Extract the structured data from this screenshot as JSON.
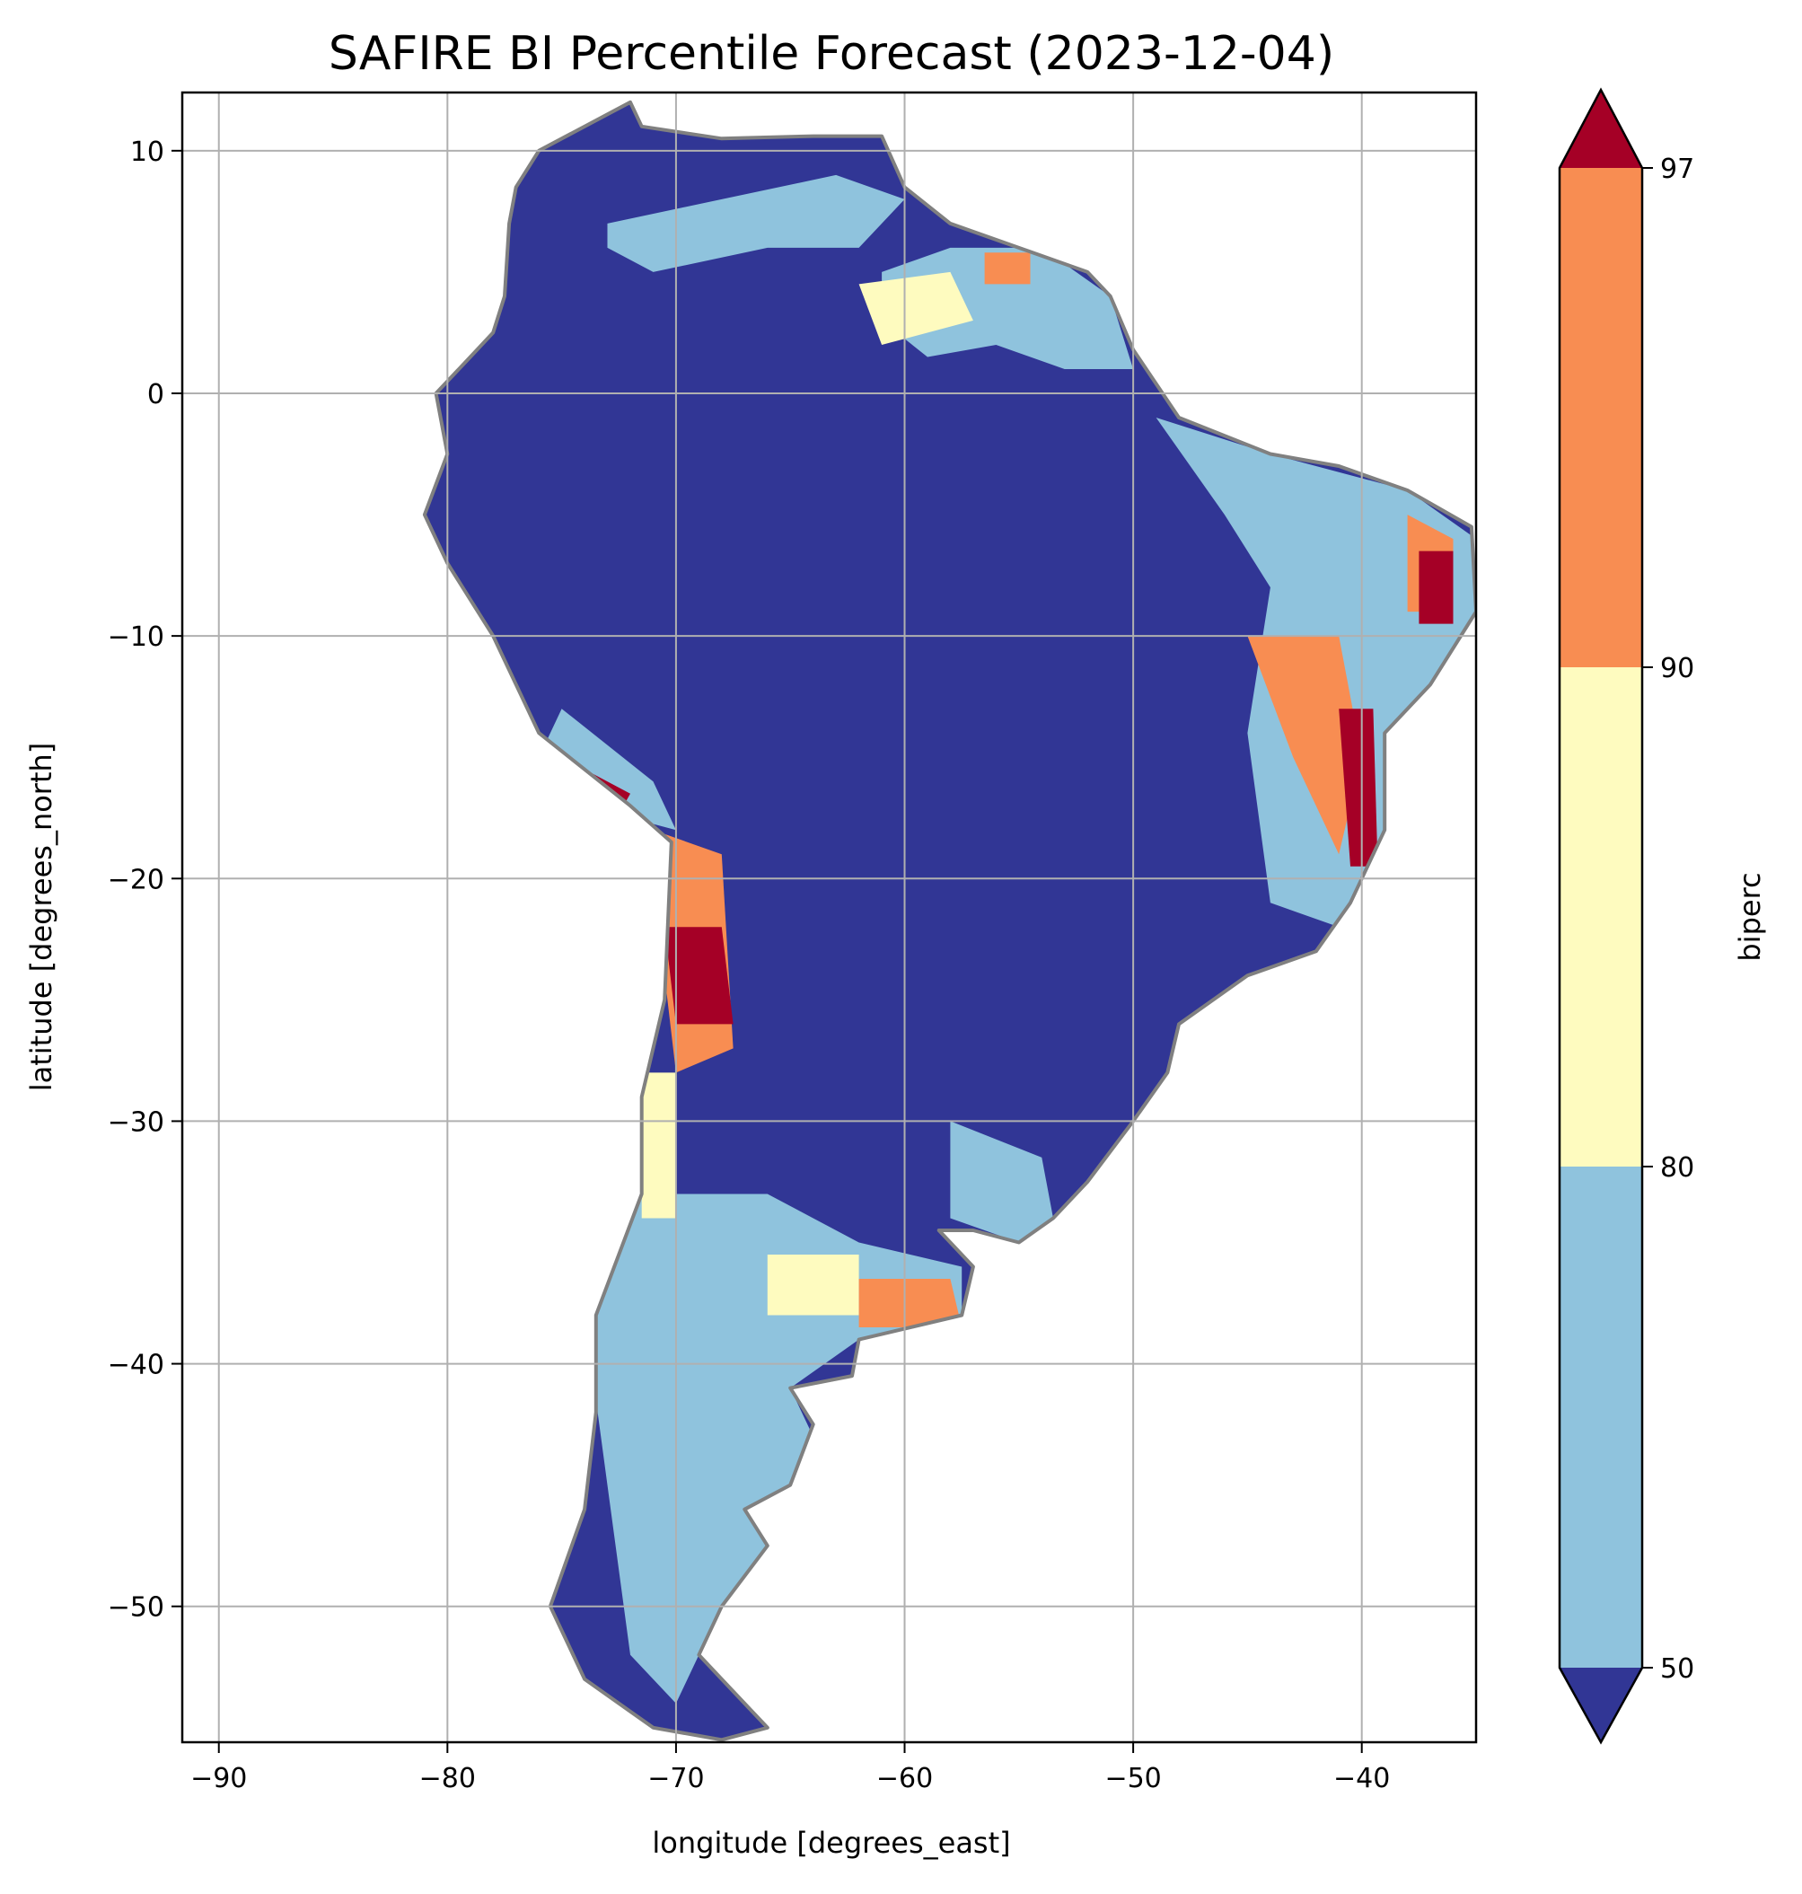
{
  "chart_data": {
    "type": "heatmap",
    "title": "SAFIRE BI Percentile Forecast (2023-12-04)",
    "xlabel": "longitude [degrees_east]",
    "ylabel": "latitude [degrees_north]",
    "xlim": [
      -91.6,
      -35.0
    ],
    "ylim": [
      -55.6,
      12.4
    ],
    "grid": true,
    "x_ticks": [
      -90,
      -80,
      -70,
      -60,
      -50,
      -40
    ],
    "x_tick_labels": [
      "−90",
      "−80",
      "−70",
      "−60",
      "−50",
      "−40"
    ],
    "y_ticks": [
      10,
      0,
      -10,
      -20,
      -30,
      -40,
      -50
    ],
    "y_tick_labels": [
      "10",
      "0",
      "−10",
      "−20",
      "−30",
      "−40",
      "−50"
    ],
    "colorbar": {
      "label": "biperc",
      "levels": [
        50,
        80,
        90,
        97
      ],
      "level_labels": [
        "50",
        "80",
        "90",
        "97"
      ],
      "extend": "both",
      "colors": {
        "below_50": "#313695",
        "50_80": "#8fc3dd",
        "80_90": "#fefbbf",
        "90_97": "#f88d52",
        "above_97": "#a50026"
      }
    },
    "border_color": "#808080"
  }
}
